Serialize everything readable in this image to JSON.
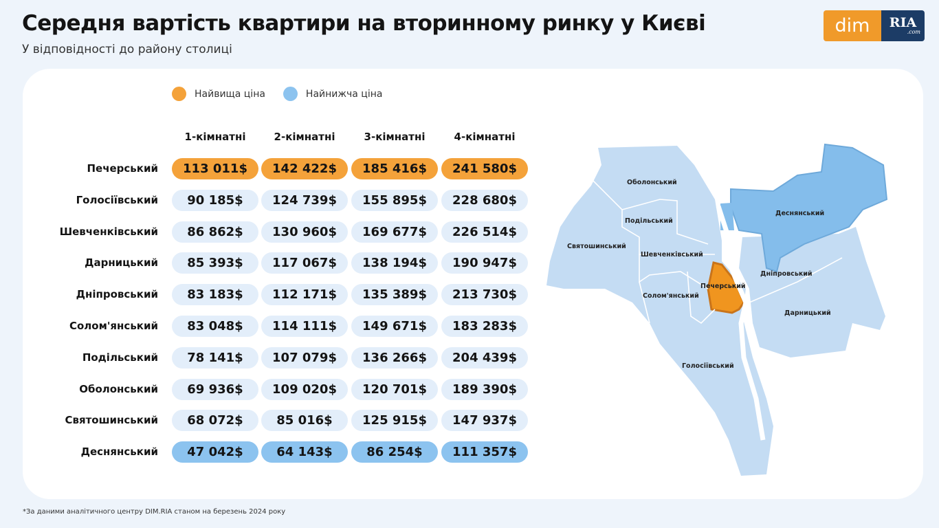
{
  "header": {
    "title": "Середня вартість квартири на вторинному ринку у Києві",
    "subtitle": "У відповідності до району столиці"
  },
  "logo": {
    "left": "dim",
    "right": "RIA",
    "right_suffix": ".com"
  },
  "legend": [
    {
      "label": "Найвища ціна",
      "color": "#f4a23a"
    },
    {
      "label": "Найнижча ціна",
      "color": "#8cc3ef"
    }
  ],
  "chart_data": {
    "type": "table",
    "columns": [
      "1-кімнатні",
      "2-кімнатні",
      "3-кімнатні",
      "4-кімнатні"
    ],
    "rows": [
      {
        "name": "Печерський",
        "values": [
          "113 011$",
          "142 422$",
          "185 416$",
          "241 580$"
        ],
        "highlight": "highest"
      },
      {
        "name": "Голосіївський",
        "values": [
          "90 185$",
          "124 739$",
          "155 895$",
          "228 680$"
        ]
      },
      {
        "name": "Шевченківський",
        "values": [
          "86 862$",
          "130 960$",
          "169 677$",
          "226 514$"
        ]
      },
      {
        "name": "Дарницький",
        "values": [
          "85 393$",
          "117 067$",
          "138 194$",
          "190 947$"
        ]
      },
      {
        "name": "Дніпровський",
        "values": [
          "83 183$",
          "112 171$",
          "135 389$",
          "213 730$"
        ]
      },
      {
        "name": "Солом'янський",
        "values": [
          "83 048$",
          "114 111$",
          "149 671$",
          "183 283$"
        ]
      },
      {
        "name": "Подільський",
        "values": [
          "78 141$",
          "107 079$",
          "136 266$",
          "204 439$"
        ]
      },
      {
        "name": "Оболонський",
        "values": [
          "69 936$",
          "109 020$",
          "120 701$",
          "189 390$"
        ]
      },
      {
        "name": "Святошинський",
        "values": [
          "68 072$",
          "85 016$",
          "125 915$",
          "147 937$"
        ]
      },
      {
        "name": "Деснянський",
        "values": [
          "47 042$",
          "64 143$",
          "86 254$",
          "111 357$"
        ],
        "highlight": "lowest"
      }
    ],
    "colors": {
      "highest": "#f4a23a",
      "lowest": "#8cc3ef",
      "default": "#e3eefa"
    }
  },
  "map": {
    "highest_district": "Печерський",
    "lowest_district": "Деснянський",
    "colors": {
      "base": "#c4dcf3",
      "highest": "#f0951f",
      "lowest": "#84bdeb"
    }
  },
  "footnote": "*За даними аналітичного центру DIM.RIA станом на березень 2024 року"
}
